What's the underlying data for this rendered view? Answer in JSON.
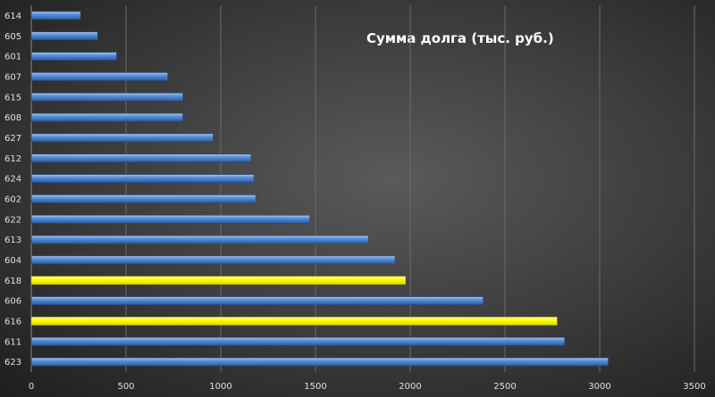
{
  "chart_data": {
    "type": "bar",
    "orientation": "horizontal",
    "title": "Сумма долга (тыс. руб.)",
    "xlabel": "",
    "ylabel": "",
    "xlim": [
      0,
      3500
    ],
    "x_ticks": [
      "0",
      "500",
      "1000",
      "1500",
      "2000",
      "2500",
      "3000",
      "3500"
    ],
    "grid": true,
    "legend": "none",
    "categories": [
      "614",
      "605",
      "601",
      "607",
      "615",
      "608",
      "627",
      "612",
      "624",
      "602",
      "622",
      "613",
      "604",
      "618",
      "606",
      "616",
      "611",
      "623"
    ],
    "values": [
      260,
      350,
      450,
      720,
      800,
      800,
      960,
      1160,
      1175,
      1185,
      1470,
      1780,
      1920,
      1975,
      2385,
      2775,
      2815,
      3045
    ],
    "highlighted": [
      "618",
      "616"
    ],
    "colors": {
      "bar": "#4f86d0",
      "highlight": "#ffff00",
      "grid": "#6a6a6a",
      "text": "#e0e0e0"
    }
  }
}
